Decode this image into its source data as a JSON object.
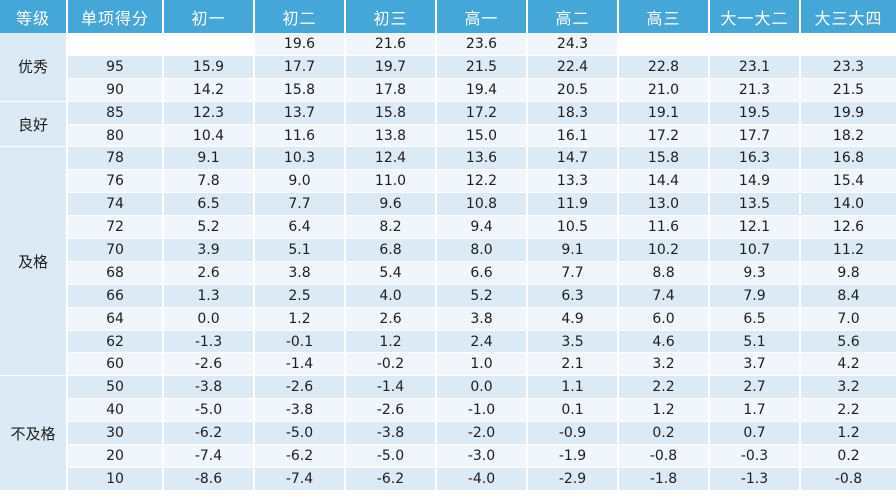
{
  "header": [
    "等级",
    "单项得分",
    "初一",
    "初二",
    "初三",
    "高一",
    "高二",
    "高三",
    "大一大二",
    "大三大四"
  ],
  "groups": [
    {
      "grade": "优秀",
      "rows": [
        [
          "",
          "",
          "19.6",
          "21.6",
          "23.6",
          "24.3",
          "",
          "",
          ""
        ],
        [
          "95",
          "15.9",
          "17.7",
          "19.7",
          "21.5",
          "22.4",
          "22.8",
          "23.1",
          "23.3"
        ],
        [
          "90",
          "14.2",
          "15.8",
          "17.8",
          "19.4",
          "20.5",
          "21.0",
          "21.3",
          "21.5"
        ]
      ]
    },
    {
      "grade": "良好",
      "rows": [
        [
          "85",
          "12.3",
          "13.7",
          "15.8",
          "17.2",
          "18.3",
          "19.1",
          "19.5",
          "19.9"
        ],
        [
          "80",
          "10.4",
          "11.6",
          "13.8",
          "15.0",
          "16.1",
          "17.2",
          "17.7",
          "18.2"
        ]
      ]
    },
    {
      "grade": "及格",
      "rows": [
        [
          "78",
          "9.1",
          "10.3",
          "12.4",
          "13.6",
          "14.7",
          "15.8",
          "16.3",
          "16.8"
        ],
        [
          "76",
          "7.8",
          "9.0",
          "11.0",
          "12.2",
          "13.3",
          "14.4",
          "14.9",
          "15.4"
        ],
        [
          "74",
          "6.5",
          "7.7",
          "9.6",
          "10.8",
          "11.9",
          "13.0",
          "13.5",
          "14.0"
        ],
        [
          "72",
          "5.2",
          "6.4",
          "8.2",
          "9.4",
          "10.5",
          "11.6",
          "12.1",
          "12.6"
        ],
        [
          "70",
          "3.9",
          "5.1",
          "6.8",
          "8.0",
          "9.1",
          "10.2",
          "10.7",
          "11.2"
        ],
        [
          "68",
          "2.6",
          "3.8",
          "5.4",
          "6.6",
          "7.7",
          "8.8",
          "9.3",
          "9.8"
        ],
        [
          "66",
          "1.3",
          "2.5",
          "4.0",
          "5.2",
          "6.3",
          "7.4",
          "7.9",
          "8.4"
        ],
        [
          "64",
          "0.0",
          "1.2",
          "2.6",
          "3.8",
          "4.9",
          "6.0",
          "6.5",
          "7.0"
        ],
        [
          "62",
          "-1.3",
          "-0.1",
          "1.2",
          "2.4",
          "3.5",
          "4.6",
          "5.1",
          "5.6"
        ],
        [
          "60",
          "-2.6",
          "-1.4",
          "-0.2",
          "1.0",
          "2.1",
          "3.2",
          "3.7",
          "4.2"
        ]
      ]
    },
    {
      "grade": "不及格",
      "rows": [
        [
          "50",
          "-3.8",
          "-2.6",
          "-1.4",
          "0.0",
          "1.1",
          "2.2",
          "2.7",
          "3.2"
        ],
        [
          "40",
          "-5.0",
          "-3.8",
          "-2.6",
          "-1.0",
          "0.1",
          "1.2",
          "1.7",
          "2.2"
        ],
        [
          "30",
          "-6.2",
          "-5.0",
          "-3.8",
          "-2.0",
          "-0.9",
          "0.2",
          "0.7",
          "1.2"
        ],
        [
          "20",
          "-7.4",
          "-6.2",
          "-5.0",
          "-3.0",
          "-1.9",
          "-0.8",
          "-0.3",
          "0.2"
        ],
        [
          "10",
          "-8.6",
          "-7.4",
          "-6.2",
          "-4.0",
          "-2.9",
          "-1.8",
          "-1.3",
          "-0.8"
        ]
      ]
    }
  ],
  "colors": {
    "header_bg": "#45a7d8",
    "row_light": "#f0f6fb",
    "row_dark": "#dbeaf5",
    "grade_bg": "#dbeaf5"
  }
}
